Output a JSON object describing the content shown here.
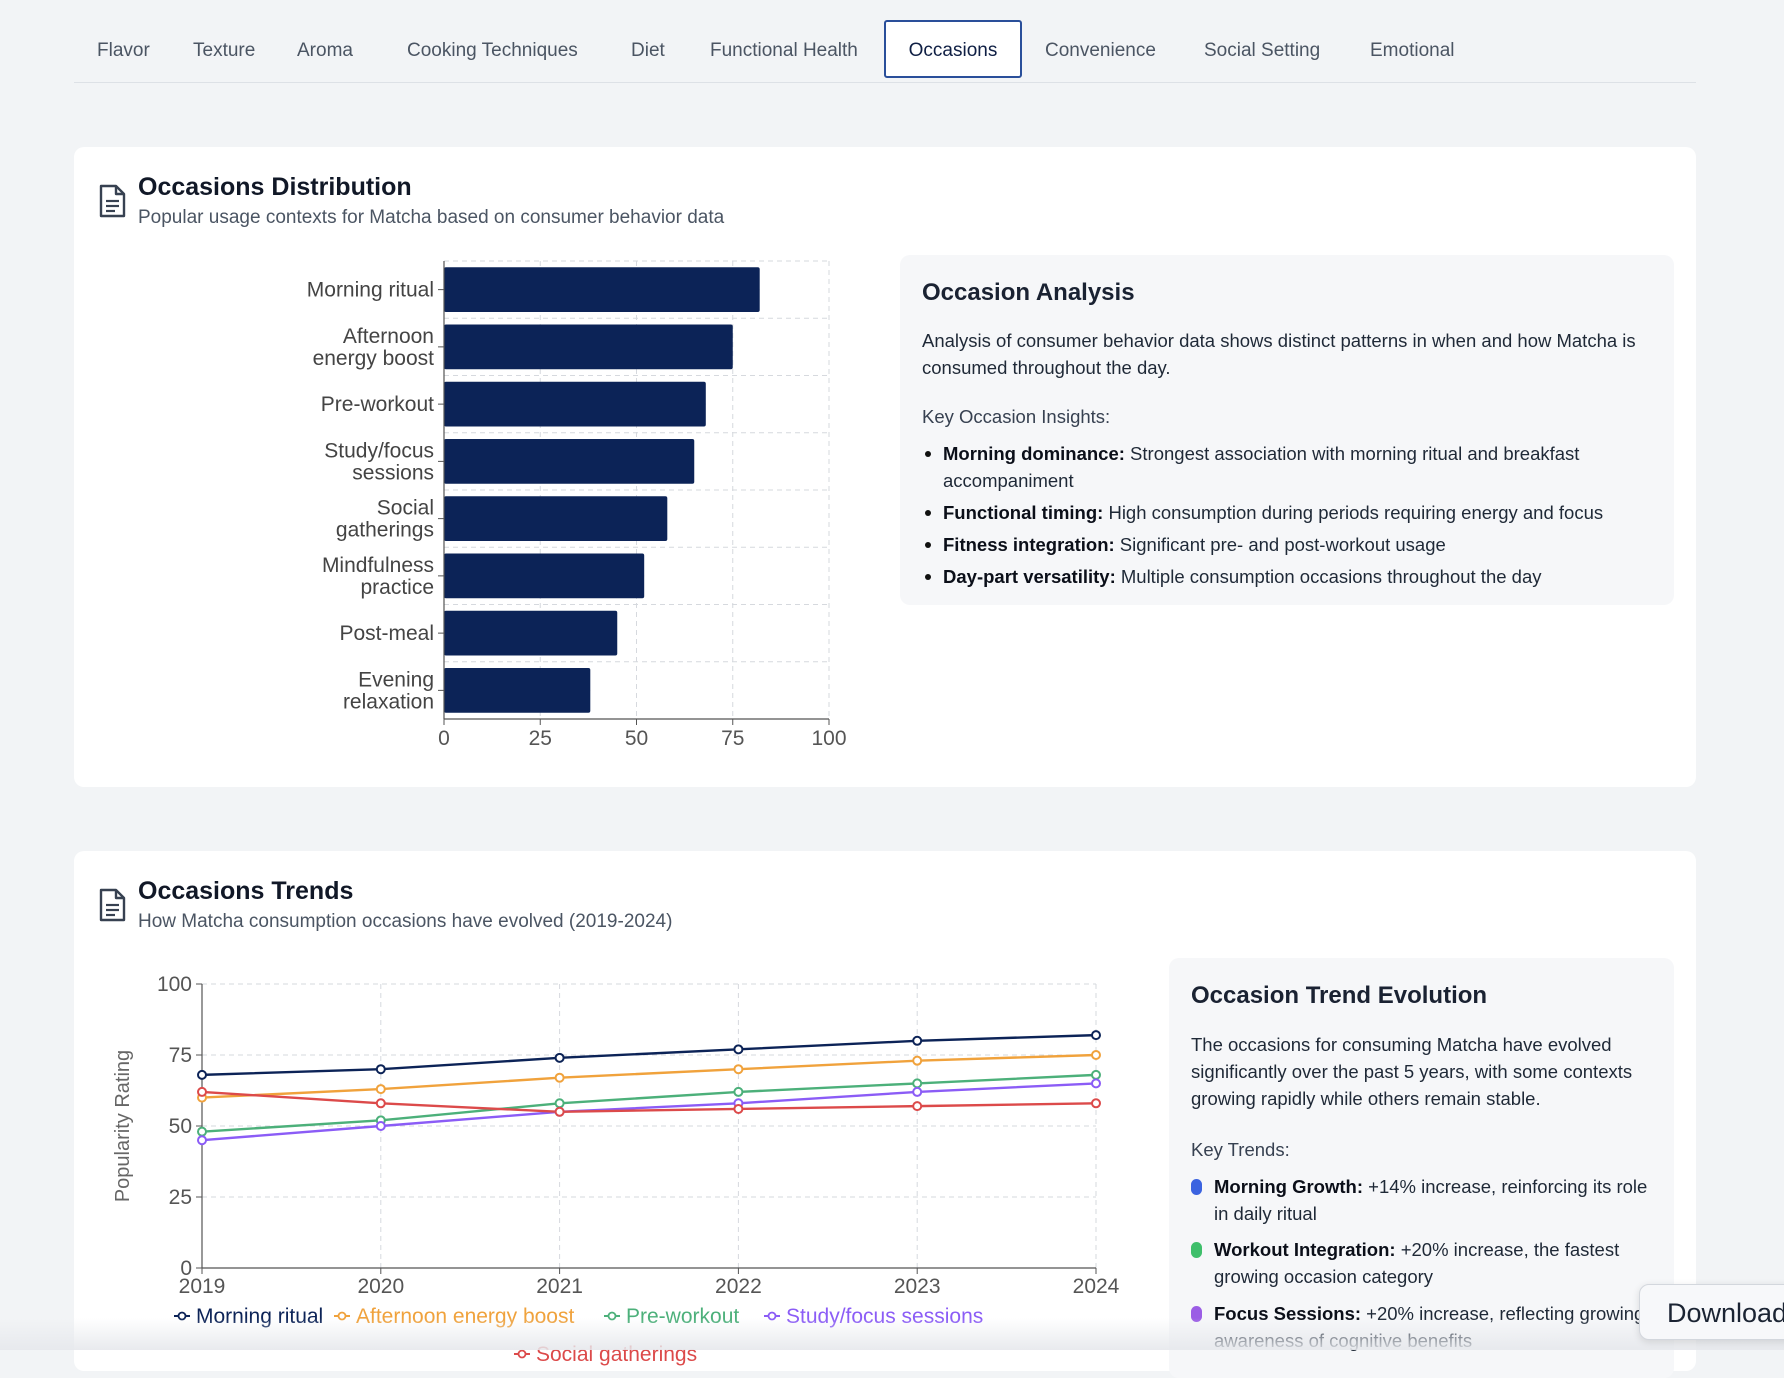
{
  "tabs": [
    {
      "label": "Flavor"
    },
    {
      "label": "Texture"
    },
    {
      "label": "Aroma"
    },
    {
      "label": "Cooking Techniques"
    },
    {
      "label": "Diet"
    },
    {
      "label": "Functional Health"
    },
    {
      "label": "Occasions",
      "active": true
    },
    {
      "label": "Convenience"
    },
    {
      "label": "Social Setting"
    },
    {
      "label": "Emotional"
    }
  ],
  "distribution": {
    "title": "Occasions Distribution",
    "subtitle": "Popular usage contexts for Matcha based on consumer behavior data",
    "icon": "document-icon",
    "bar_color": "#0c2357"
  },
  "analysis": {
    "heading": "Occasion Analysis",
    "paragraph": "Analysis of consumer behavior data shows distinct patterns in when and how Matcha is consumed throughout the day.",
    "insights_label": "Key Occasion Insights:",
    "insights": [
      {
        "bold": "Morning dominance:",
        "text": " Strongest association with morning ritual and breakfast accompaniment"
      },
      {
        "bold": "Functional timing:",
        "text": " High consumption during periods requiring energy and focus"
      },
      {
        "bold": "Fitness integration:",
        "text": " Significant pre- and post-workout usage"
      },
      {
        "bold": "Day-part versatility:",
        "text": " Multiple consumption occasions throughout the day"
      }
    ]
  },
  "trends": {
    "title": "Occasions Trends",
    "subtitle": "How Matcha consumption occasions have evolved (2019-2024)",
    "icon": "document-icon"
  },
  "evolution": {
    "heading": "Occasion Trend Evolution",
    "paragraph": "The occasions for consuming Matcha have evolved significantly over the past 5 years, with some contexts growing rapidly while others remain stable.",
    "trends_label": "Key Trends:",
    "items": [
      {
        "bold": "Morning Growth:",
        "text": " +14% increase, reinforcing its role in daily ritual",
        "color": "#3b63e0"
      },
      {
        "bold": "Workout Integration:",
        "text": " +20% increase, the fastest growing occasion category",
        "color": "#3fbf6b"
      },
      {
        "bold": "Focus Sessions:",
        "text": " +20% increase, reflecting growing awareness of cognitive benefits",
        "color": "#9b5de5"
      }
    ]
  },
  "download_label": "Download",
  "chart_data": [
    {
      "type": "bar",
      "orientation": "horizontal",
      "categories": [
        "Morning ritual",
        "Afternoon energy boost",
        "Pre-workout",
        "Study/focus sessions",
        "Social gatherings",
        "Mindfulness practice",
        "Post-meal",
        "Evening relaxation"
      ],
      "values": [
        82,
        75,
        68,
        65,
        58,
        52,
        45,
        38
      ],
      "xlim": [
        0,
        100
      ],
      "xticks": [
        0,
        25,
        50,
        75,
        100
      ],
      "grid": true
    },
    {
      "type": "line",
      "x": [
        "2019",
        "2020",
        "2021",
        "2022",
        "2023",
        "2024"
      ],
      "ylabel": "Popularity Rating",
      "ylim": [
        0,
        100
      ],
      "yticks": [
        0,
        25,
        50,
        75,
        100
      ],
      "grid": true,
      "legend": "bottom",
      "series": [
        {
          "name": "Morning ritual",
          "color": "#0c2357",
          "values": [
            68,
            70,
            74,
            77,
            80,
            82
          ]
        },
        {
          "name": "Afternoon energy boost",
          "color": "#f0a23c",
          "values": [
            60,
            63,
            67,
            70,
            73,
            75
          ]
        },
        {
          "name": "Pre-workout",
          "color": "#4cb07a",
          "values": [
            48,
            52,
            58,
            62,
            65,
            68
          ]
        },
        {
          "name": "Study/focus sessions",
          "color": "#8b5cf6",
          "values": [
            45,
            50,
            55,
            58,
            62,
            65
          ]
        },
        {
          "name": "Social gatherings",
          "color": "#dc4a4a",
          "values": [
            62,
            58,
            55,
            56,
            57,
            58
          ]
        }
      ]
    }
  ]
}
